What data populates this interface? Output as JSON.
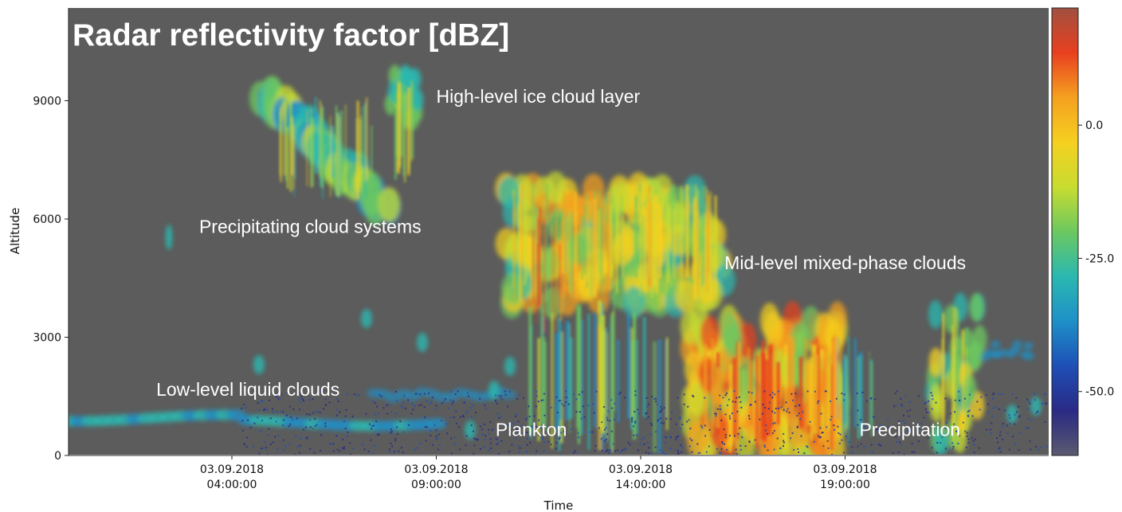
{
  "chart_data": {
    "type": "heatmap",
    "title": "Radar reflectivity factor [dBZ]",
    "xlabel": "Time",
    "ylabel": "Altitude",
    "y_ticks": [
      0,
      3000,
      6000,
      9000
    ],
    "x_ticks": [
      {
        "date": "03.09.2018",
        "time": "04:00:00",
        "hour": 4
      },
      {
        "date": "03.09.2018",
        "time": "09:00:00",
        "hour": 9
      },
      {
        "date": "03.09.2018",
        "time": "14:00:00",
        "hour": 14
      },
      {
        "date": "03.09.2018",
        "time": "19:00:00",
        "hour": 19
      }
    ],
    "xlim_hours": [
      0,
      24
    ],
    "ylim": [
      0,
      11300
    ],
    "colorbar": {
      "ticks": [
        "0.0",
        "-25.0",
        "-50.0"
      ],
      "tick_values": [
        0,
        -25,
        -50
      ],
      "range": [
        -62,
        22
      ],
      "colors": [
        "#5a5a70",
        "#2a2a85",
        "#1e4fb5",
        "#1e90c8",
        "#2ab8b0",
        "#6cc860",
        "#c8dc30",
        "#f5d020",
        "#f5a020",
        "#e84020",
        "#a05040"
      ]
    },
    "background_color": "#5c5c5c",
    "annotations": [
      {
        "text": "High-level ice cloud layer",
        "hour": 9.0,
        "alt": 8950
      },
      {
        "text": "Precipitating cloud systems",
        "hour": 3.2,
        "alt": 5650
      },
      {
        "text": "Mid-level mixed-phase clouds",
        "hour": 16.05,
        "alt": 4730
      },
      {
        "text": "Low-level liquid clouds",
        "hour": 2.15,
        "alt": 1520
      },
      {
        "text": "Plankton",
        "hour": 10.45,
        "alt": 490
      },
      {
        "text": "Precipitation",
        "hour": 19.35,
        "alt": 490
      }
    ]
  }
}
